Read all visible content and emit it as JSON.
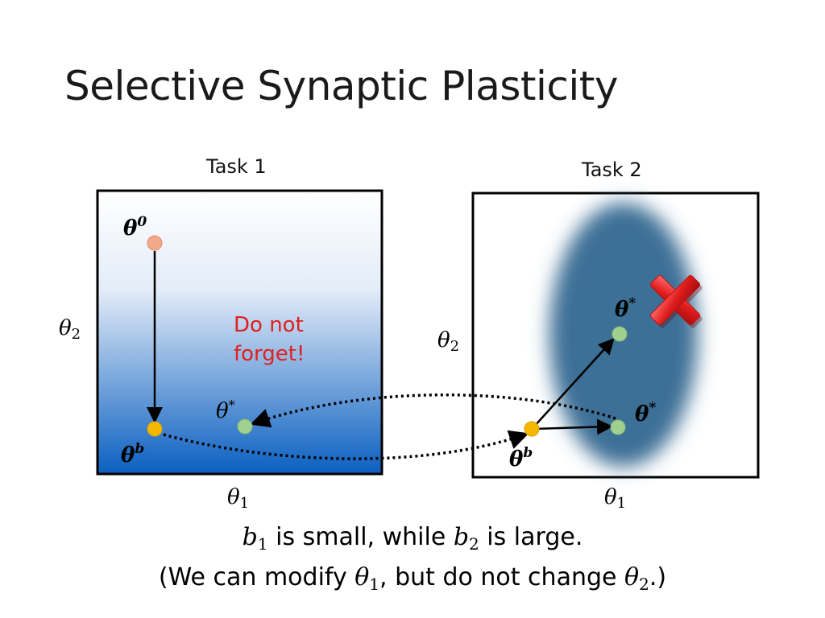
{
  "slide": {
    "title": "Selective Synaptic Plasticity"
  },
  "task1": {
    "label": "Task 1",
    "theta0": "θ",
    "theta0_sup": "0",
    "thetab": "θ",
    "thetab_sup": "b",
    "thetastar": "θ",
    "thetastar_sup": "*",
    "axis_x": "θ",
    "axis_x_sub": "1",
    "axis_y": "θ",
    "axis_y_sub": "2",
    "warning_line1": "Do not",
    "warning_line2": "forget!"
  },
  "task2": {
    "label": "Task 2",
    "thetastar_top": "θ",
    "thetastar_top_sup": "*",
    "thetastar_right": "θ",
    "thetastar_right_sup": "*",
    "thetab": "θ",
    "thetab_sup": "b",
    "axis_x": "θ",
    "axis_x_sub": "1",
    "axis_y": "θ",
    "axis_y_sub": "2"
  },
  "caption": {
    "line1_b": "b",
    "line1_b_sub1": "1",
    "line1_text1": " is small, while ",
    "line1_b2": "b",
    "line1_b_sub2": "2",
    "line1_text2": " is large.",
    "line2_text1": "(We can modify ",
    "line2_theta1": "θ",
    "line2_theta1_sub": "1",
    "line2_text2": ", but do not change ",
    "line2_theta2": "θ",
    "line2_theta2_sub": "2",
    "line2_text3": ".)"
  },
  "colors": {
    "gradient_top": "#ffffff",
    "gradient_bottom": "#0a5fc0",
    "ellipse": "#3e6f96",
    "theta0_point": "#f2a88a",
    "thetab_point": "#f5b800",
    "thetastar_point": "#9fd08e",
    "warning": "#e0201e",
    "cross": "#e22323"
  }
}
